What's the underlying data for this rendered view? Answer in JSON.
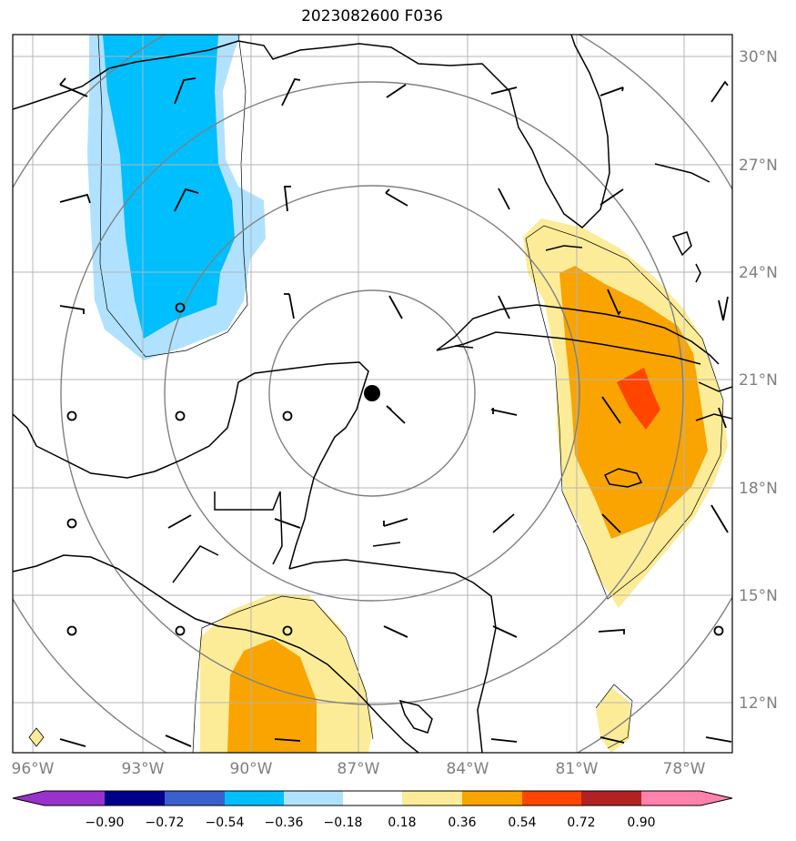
{
  "title": "2023082600 F036",
  "map": {
    "lon_range": [
      -96.5,
      -77.2
    ],
    "lat_range": [
      10.7,
      30.8
    ],
    "lat_labels": [
      "30°N",
      "27°N",
      "24°N",
      "21°N",
      "18°N",
      "15°N",
      "12°N"
    ],
    "lat_values": [
      30,
      27,
      24,
      21,
      18,
      15,
      12
    ],
    "lon_labels": [
      "96°W",
      "93°W",
      "90°W",
      "87°W",
      "84°W",
      "81°W",
      "78°W"
    ],
    "lon_values": [
      -96,
      -93,
      -90,
      -87,
      -84,
      -81,
      -78
    ],
    "storm_center": {
      "lon": -86.6,
      "lat": 20.6
    },
    "range_rings_deg": [
      3,
      6,
      9,
      12
    ],
    "positive_color": "#f9a400",
    "negative_color": "#00bfff"
  },
  "colorbar": {
    "tick_labels": [
      "−0.90",
      "−0.72",
      "−0.54",
      "−0.36",
      "−0.18",
      "0.18",
      "0.36",
      "0.54",
      "0.72",
      "0.90"
    ],
    "bin_colors": [
      "#9932cc",
      "#00008b",
      "#3a5fcd",
      "#00bfff",
      "#b0e2ff",
      "#ffffff",
      "#fdec97",
      "#f9a400",
      "#ff4500",
      "#b22222",
      "#ff82ab"
    ]
  }
}
